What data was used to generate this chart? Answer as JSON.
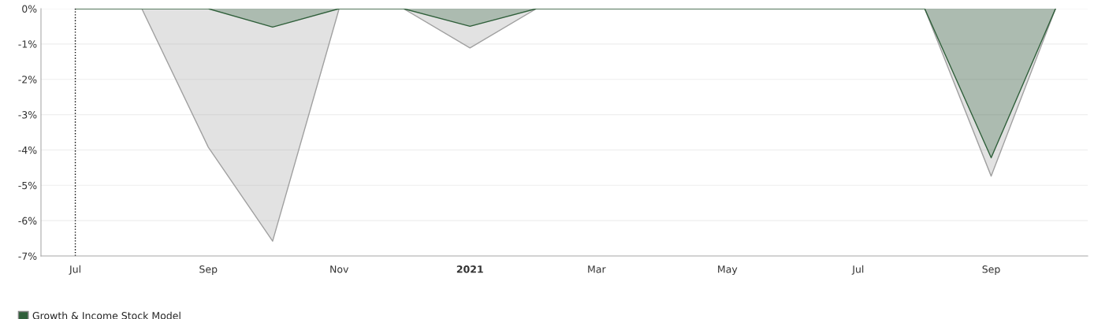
{
  "chart_data": {
    "type": "area",
    "x": [
      "2020-07-01",
      "2020-08-01",
      "2020-09-01",
      "2020-10-01",
      "2020-11-01",
      "2020-12-01",
      "2021-01-01",
      "2021-02-01",
      "2021-03-01",
      "2021-04-01",
      "2021-05-01",
      "2021-06-01",
      "2021-07-01",
      "2021-08-01",
      "2021-09-01",
      "2021-10-01"
    ],
    "series": [
      {
        "name": "Growth & Income Stock Model",
        "color": "#2f5f3a",
        "values": [
          0,
          0,
          0,
          -0.52,
          0,
          0,
          -0.5,
          0,
          0,
          0,
          0,
          0,
          0,
          0,
          -4.22,
          0
        ]
      },
      {
        "color": "#a0a0a0",
        "values": [
          0,
          0,
          -3.92,
          -6.58,
          0,
          0,
          -1.11,
          0,
          0,
          0,
          0,
          0,
          0,
          0,
          -4.74,
          0
        ]
      }
    ],
    "xlim": [
      "2020-06-15",
      "2021-10-16"
    ],
    "xticks": [
      {
        "value": "2020-07-01",
        "label": "Jul"
      },
      {
        "value": "2020-09-01",
        "label": "Sep"
      },
      {
        "value": "2020-11-01",
        "label": "Nov"
      },
      {
        "value": "2021-01-01",
        "label": "2021"
      },
      {
        "value": "2021-03-01",
        "label": "Mar"
      },
      {
        "value": "2021-05-01",
        "label": "May"
      },
      {
        "value": "2021-07-01",
        "label": "Jul"
      },
      {
        "value": "2021-09-01",
        "label": "Sep"
      }
    ],
    "ylim": [
      -7,
      0
    ],
    "yticks": [
      {
        "value": 0,
        "label": "0%"
      },
      {
        "value": -1,
        "label": "-1%"
      },
      {
        "value": -2,
        "label": "-2%"
      },
      {
        "value": -3,
        "label": "-3%"
      },
      {
        "value": -4,
        "label": "-4%"
      },
      {
        "value": -5,
        "label": "-5%"
      },
      {
        "value": -6,
        "label": "-6%"
      },
      {
        "value": -7,
        "label": "-7%"
      }
    ],
    "ref_lines": [
      {
        "axis": "x",
        "value": "2020-07-01",
        "color": "#000000",
        "line_style": "dotted"
      }
    ],
    "grid": "y",
    "legend": "bottom left"
  }
}
